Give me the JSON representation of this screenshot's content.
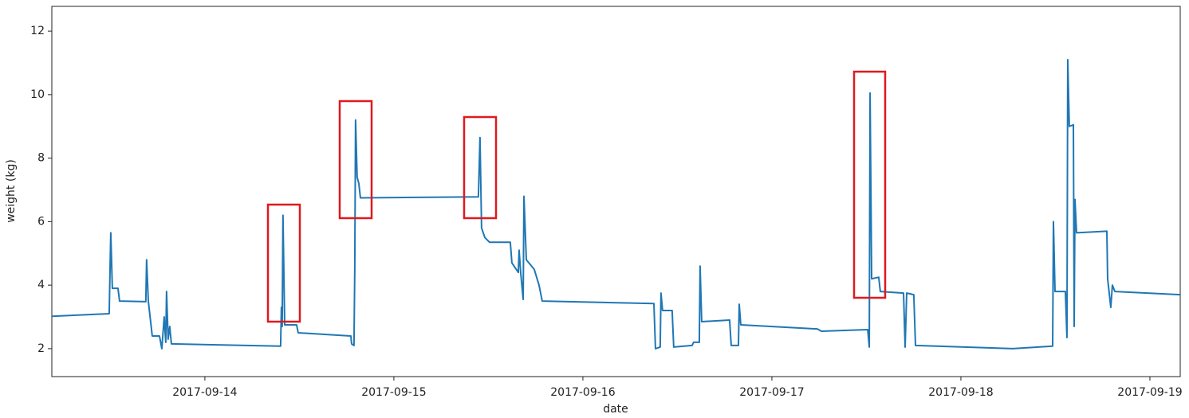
{
  "chart_data": {
    "type": "line",
    "x_label": "date",
    "y_label": "weight (kg)",
    "color": "#1f77b4",
    "xlim": [
      "2017-09-13 04:34",
      "2017-09-19 03:51"
    ],
    "xticks": [
      "2017-09-14",
      "2017-09-15",
      "2017-09-16",
      "2017-09-17",
      "2017-09-18",
      "2017-09-19"
    ],
    "ylim": [
      1.12,
      12.78
    ],
    "yticks": [
      2,
      4,
      6,
      8,
      10,
      12
    ],
    "grid": false,
    "x": [
      "2017-09-13 04:34",
      "2017-09-13 11:51",
      "2017-09-13 12:03",
      "2017-09-13 12:15",
      "2017-09-13 12:58",
      "2017-09-13 13:10",
      "2017-09-13 16:30",
      "2017-09-13 16:36",
      "2017-09-13 16:49",
      "2017-09-13 17:19",
      "2017-09-13 18:14",
      "2017-09-13 18:32",
      "2017-09-13 18:50",
      "2017-09-13 19:02",
      "2017-09-13 19:08",
      "2017-09-13 19:20",
      "2017-09-13 19:32",
      "2017-09-13 19:45",
      "2017-09-14 09:37",
      "2017-09-14 09:43",
      "2017-09-14 09:49",
      "2017-09-14 09:55",
      "2017-09-14 10:08",
      "2017-09-14 11:39",
      "2017-09-14 11:51",
      "2017-09-14 18:32",
      "2017-09-14 18:38",
      "2017-09-14 18:56",
      "2017-09-14 19:02",
      "2017-09-14 19:08",
      "2017-09-14 19:20",
      "2017-09-14 19:33",
      "2017-09-14 19:45",
      "2017-09-15 10:44",
      "2017-09-15 10:56",
      "2017-09-15 11:08",
      "2017-09-15 11:33",
      "2017-09-15 12:09",
      "2017-09-15 14:47",
      "2017-09-15 14:59",
      "2017-09-15 15:48",
      "2017-09-15 15:54",
      "2017-09-15 16:06",
      "2017-09-15 16:25",
      "2017-09-15 16:31",
      "2017-09-15 16:49",
      "2017-09-15 17:49",
      "2017-09-15 18:26",
      "2017-09-15 18:50",
      "2017-09-16 09:01",
      "2017-09-16 09:13",
      "2017-09-16 09:49",
      "2017-09-16 09:55",
      "2017-09-16 10:07",
      "2017-09-16 11:20",
      "2017-09-16 11:32",
      "2017-09-16 13:52",
      "2017-09-16 14:04",
      "2017-09-16 14:47",
      "2017-09-16 14:53",
      "2017-09-16 15:05",
      "2017-09-16 18:38",
      "2017-09-16 18:50",
      "2017-09-16 19:45",
      "2017-09-16 19:51",
      "2017-09-16 20:03",
      "2017-09-17 05:46",
      "2017-09-17 06:17",
      "2017-09-17 12:10",
      "2017-09-17 12:22",
      "2017-09-17 12:28",
      "2017-09-17 12:40",
      "2017-09-17 13:34",
      "2017-09-17 13:46",
      "2017-09-17 16:43",
      "2017-09-17 16:55",
      "2017-09-17 17:07",
      "2017-09-17 18:01",
      "2017-09-17 18:14",
      "2017-09-18 06:35",
      "2017-09-18 11:39",
      "2017-09-18 11:45",
      "2017-09-18 11:57",
      "2017-09-18 13:16",
      "2017-09-18 13:28",
      "2017-09-18 13:34",
      "2017-09-18 13:46",
      "2017-09-18 14:17",
      "2017-09-18 14:23",
      "2017-09-18 14:29",
      "2017-09-18 14:41",
      "2017-09-18 18:32",
      "2017-09-18 18:38",
      "2017-09-18 19:02",
      "2017-09-18 19:14",
      "2017-09-18 19:33",
      "2017-09-19 03:51"
    ],
    "values": [
      3.02,
      3.1,
      5.65,
      3.9,
      3.9,
      3.5,
      3.48,
      4.8,
      3.5,
      2.4,
      2.4,
      2.0,
      3.0,
      2.2,
      3.8,
      2.3,
      2.7,
      2.15,
      2.08,
      3.3,
      2.7,
      6.2,
      2.75,
      2.75,
      2.5,
      2.4,
      2.15,
      2.1,
      4.5,
      9.2,
      7.4,
      7.2,
      6.75,
      6.78,
      8.65,
      5.8,
      5.5,
      5.35,
      5.35,
      4.7,
      4.4,
      5.1,
      4.4,
      3.55,
      6.8,
      4.8,
      4.5,
      4.0,
      3.5,
      3.42,
      2.0,
      2.05,
      3.75,
      3.2,
      3.2,
      2.05,
      2.1,
      2.2,
      2.2,
      4.6,
      2.85,
      2.9,
      2.1,
      2.1,
      3.4,
      2.75,
      2.62,
      2.55,
      2.6,
      2.05,
      10.05,
      4.2,
      4.25,
      3.8,
      3.75,
      2.05,
      3.75,
      3.7,
      2.1,
      2.0,
      2.08,
      6.0,
      3.8,
      3.8,
      2.35,
      11.1,
      9.0,
      9.05,
      2.7,
      6.7,
      5.65,
      5.7,
      4.2,
      3.3,
      4.0,
      3.8,
      3.7
    ]
  }
}
